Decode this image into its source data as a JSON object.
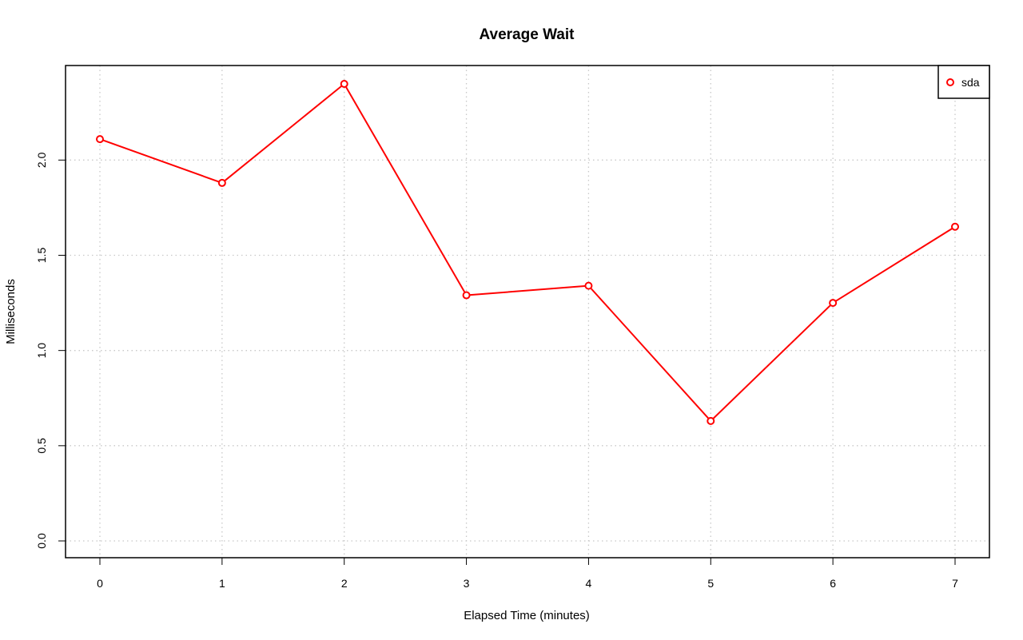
{
  "chart_data": {
    "type": "line",
    "title": "Average Wait",
    "xlabel": "Elapsed Time (minutes)",
    "ylabel": "Milliseconds",
    "xlim": [
      0,
      7
    ],
    "ylim": [
      0,
      2.4
    ],
    "x_ticks": [
      "0",
      "1",
      "2",
      "3",
      "4",
      "5",
      "6",
      "7"
    ],
    "y_ticks": [
      "0.0",
      "0.5",
      "1.0",
      "1.5",
      "2.0"
    ],
    "grid": true,
    "legend_position": "top-right",
    "series": [
      {
        "name": "sda",
        "color": "#ff0000",
        "marker": "open-circle",
        "x": [
          0,
          1,
          2,
          3,
          4,
          5,
          6,
          7
        ],
        "values": [
          2.11,
          1.88,
          2.4,
          1.29,
          1.34,
          0.63,
          1.25,
          1.65
        ]
      }
    ]
  }
}
